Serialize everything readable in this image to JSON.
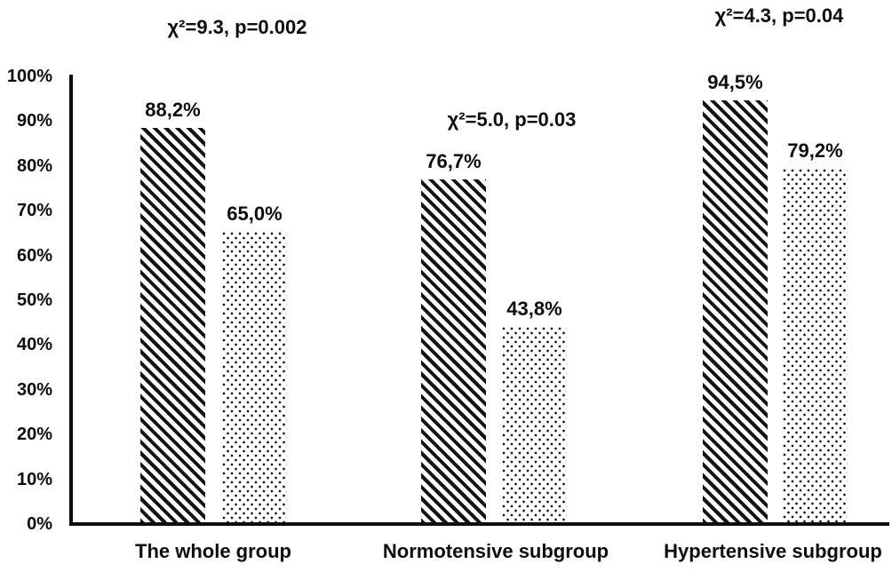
{
  "chart_data": {
    "type": "bar",
    "title": "",
    "xlabel": "",
    "ylabel": "",
    "ylim": [
      0,
      100
    ],
    "grid": false,
    "legend": "none",
    "colors": {
      "foreground": "#0d0d0d",
      "background": "#ffffff"
    },
    "categories": [
      "The whole group",
      "Normotensive subgroup",
      "Hypertensive subgroup"
    ],
    "series": [
      {
        "name": "hatched-series",
        "pattern": "diagonal-hatch",
        "values": [
          88.2,
          76.7,
          94.5
        ],
        "labels": [
          "88,2%",
          "76,7%",
          "94,5%"
        ]
      },
      {
        "name": "dotted-series",
        "pattern": "dots",
        "values": [
          65.0,
          43.8,
          79.2
        ],
        "labels": [
          "65,0%",
          "43,8%",
          "79,2%"
        ]
      }
    ],
    "annotations": [
      "χ²=9.3, p=0.002",
      "χ²=5.0, p=0.03",
      "χ²=4.3, p=0.04"
    ],
    "y_ticks": [
      {
        "label": "100%",
        "value": 100
      },
      {
        "label": "90%",
        "value": 90
      },
      {
        "label": "80%",
        "value": 80
      },
      {
        "label": "70%",
        "value": 70
      },
      {
        "label": "60%",
        "value": 60
      },
      {
        "label": "50%",
        "value": 50
      },
      {
        "label": "40%",
        "value": 40
      },
      {
        "label": "30%",
        "value": 30
      },
      {
        "label": "20%",
        "value": 20
      },
      {
        "label": "10%",
        "value": 10
      },
      {
        "label": "0%",
        "value": 0
      }
    ]
  }
}
